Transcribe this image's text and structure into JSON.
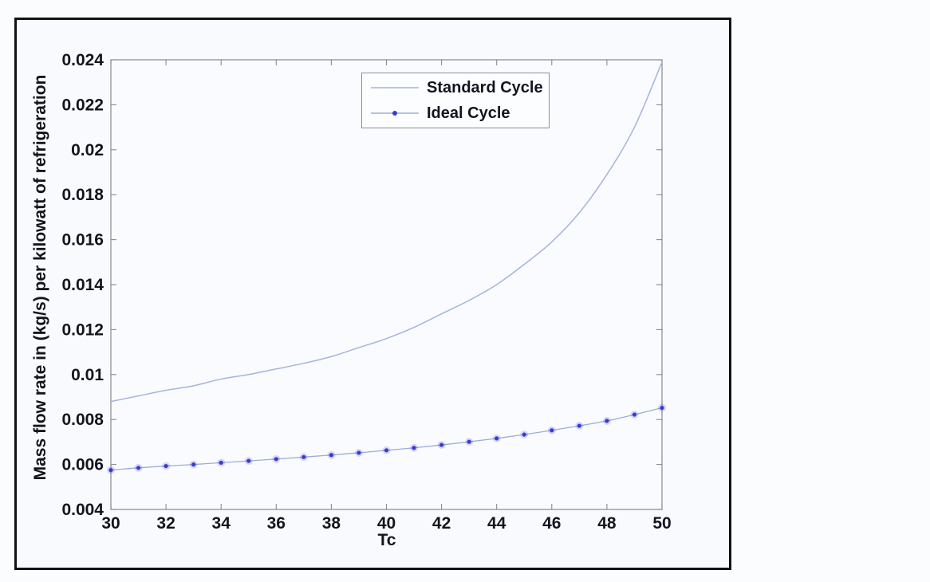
{
  "page": {
    "background": "#fbfcfe"
  },
  "figure": {
    "background": "#f9fafd",
    "border_color": "#111118",
    "plot_background": "#fafbff",
    "spine_color": "#88888f",
    "text_color": "#14141e"
  },
  "chart_data": {
    "type": "line",
    "title": "",
    "xlabel": "Tc",
    "ylabel": "Mass flow rate in (kg/s) per kilowatt of refrigeration",
    "xlim": [
      30,
      50
    ],
    "ylim": [
      0.004,
      0.024
    ],
    "grid": false,
    "box": true,
    "legend_position": "inside upper center-left",
    "xticks": [
      30,
      32,
      34,
      36,
      38,
      40,
      42,
      44,
      46,
      48,
      50
    ],
    "xtick_labels": [
      "30",
      "32",
      "34",
      "36",
      "38",
      "40",
      "42",
      "44",
      "46",
      "48",
      "50"
    ],
    "yticks": [
      0.004,
      0.006,
      0.008,
      0.01,
      0.012,
      0.014,
      0.016,
      0.018,
      0.02,
      0.022,
      0.024
    ],
    "ytick_labels": [
      "0.004",
      "0.006",
      "0.008",
      "0.01",
      "0.012",
      "0.014",
      "0.016",
      "0.018",
      "0.02",
      "0.022",
      "0.024"
    ],
    "x": [
      30,
      31,
      32,
      33,
      34,
      35,
      36,
      37,
      38,
      39,
      40,
      41,
      42,
      43,
      44,
      45,
      46,
      47,
      48,
      49,
      50
    ],
    "series": [
      {
        "name": "Standard Cycle",
        "color": "#a4b4da",
        "marker": "none",
        "values": [
          0.0088,
          0.00905,
          0.0093,
          0.0095,
          0.0098,
          0.01,
          0.01025,
          0.0105,
          0.0108,
          0.0112,
          0.0116,
          0.0121,
          0.0127,
          0.0133,
          0.014,
          0.0149,
          0.0159,
          0.0172,
          0.0189,
          0.021,
          0.0239
        ]
      },
      {
        "name": "Ideal Cycle",
        "color": "#9cadd6",
        "marker": "dot",
        "marker_color": "#3a3bd0",
        "values": [
          0.00575,
          0.00585,
          0.00593,
          0.006,
          0.00608,
          0.00616,
          0.00624,
          0.00633,
          0.00642,
          0.00652,
          0.00663,
          0.00674,
          0.00687,
          0.00701,
          0.00716,
          0.00733,
          0.00752,
          0.00772,
          0.00794,
          0.00822,
          0.00852
        ]
      }
    ]
  }
}
